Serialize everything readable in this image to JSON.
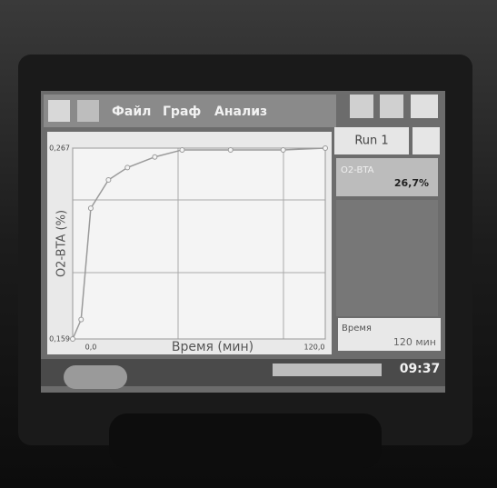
{
  "menu": {
    "items": [
      "Файл",
      "Граф",
      "Анализ"
    ]
  },
  "sidebar": {
    "run": "Run 1",
    "sensor": "O2-BTA",
    "reading": "26,7%",
    "time_label": "Время",
    "time_value": "120 мин"
  },
  "status": {
    "clock": "09:37"
  },
  "chart_data": {
    "type": "line",
    "x_label": "Время (мин)",
    "y_label": "O2-BTA (%)",
    "x": [
      0,
      4,
      8.6,
      17,
      26,
      39,
      52,
      75,
      100,
      120
    ],
    "values": [
      0.159,
      0.17,
      0.233,
      0.249,
      0.256,
      0.262,
      0.266,
      0.266,
      0.266,
      0.267
    ],
    "color": "#9a9a9a",
    "xlim": [
      0,
      120
    ],
    "ylim": [
      0.159,
      0.267
    ],
    "xticks": [
      {
        "value": 0,
        "label": "0,0"
      },
      {
        "value": 120,
        "label": "120,0"
      }
    ],
    "yticks": [
      {
        "value": 0.159,
        "label": "0,159"
      },
      {
        "value": 0.267,
        "label": "0,267"
      }
    ],
    "grid": true
  }
}
